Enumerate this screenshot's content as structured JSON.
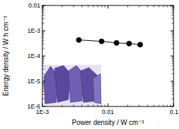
{
  "chart_data": {
    "type": "line",
    "x_label": "Power density / W cm⁻³",
    "y_label": "Energy density / W h cm⁻³",
    "log": true,
    "xlim": [
      0.001,
      0.1
    ],
    "ylim": [
      1e-06,
      0.01
    ],
    "xticks": [
      {
        "value": 0.001,
        "label": "1E-3"
      },
      0.01,
      0.1
    ],
    "yticks": [
      {
        "value": 1e-06,
        "label": "1E-6"
      },
      {
        "value": 1e-05,
        "label": "1E-5"
      },
      {
        "value": 0.0001,
        "label": "1E-4"
      },
      {
        "value": 0.001,
        "label": "1E-3"
      },
      0.01
    ],
    "x": [
      0.0036,
      0.008,
      0.0135,
      0.021,
      0.031
    ],
    "series": [
      {
        "name": "Energy density",
        "color": "#000000",
        "marker": "circle",
        "line_style": "solid",
        "values": [
          0.00043,
          0.00038,
          0.00033,
          0.00031,
          0.00028
        ]
      }
    ]
  }
}
